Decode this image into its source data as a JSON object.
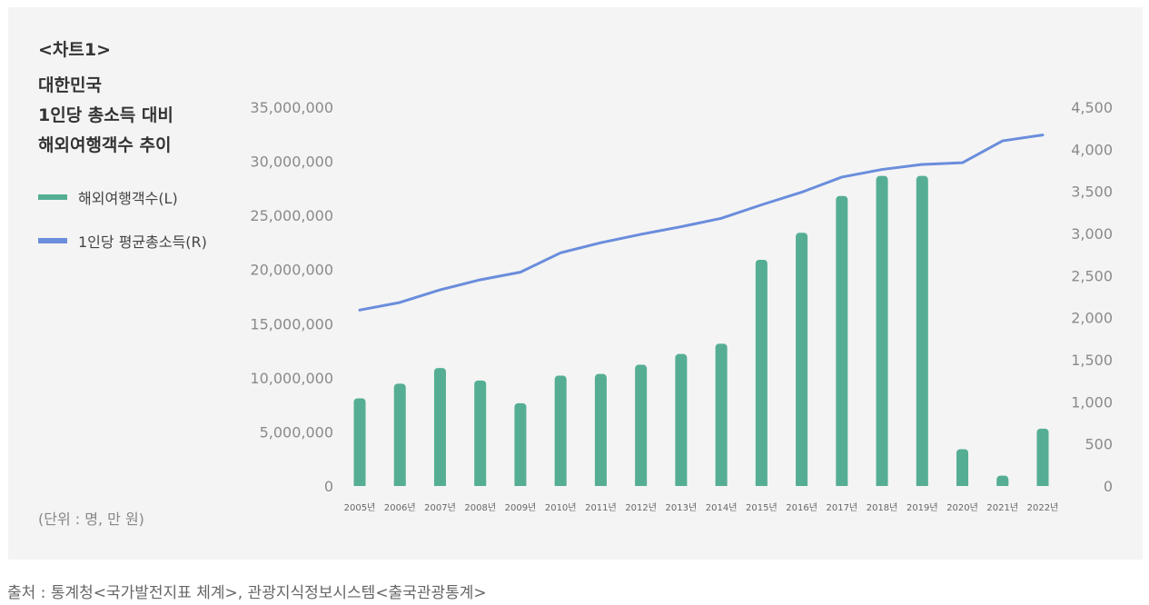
{
  "header": {
    "label": "<차트1>",
    "title": "대한민국\n1인당 총소득 대비\n해외여행객수 추이"
  },
  "legend": [
    {
      "label": "해외여행객수(L)",
      "color": "#55ae94"
    },
    {
      "label": "1인당 평균총소득(R)",
      "color": "#6a8ddc"
    }
  ],
  "unit_note": "(단위 : 명, 만 원)",
  "source": "출처 : 통계청<국가발전지표 체계>, 관광지식정보시스템<출국관광통계>",
  "chart_data": {
    "type": "bar+line",
    "categories": [
      "2005년",
      "2006년",
      "2007년",
      "2008년",
      "2009년",
      "2010년",
      "2011년",
      "2012년",
      "2013년",
      "2014년",
      "2015년",
      "2016년",
      "2017년",
      "2018년",
      "2019년",
      "2020년",
      "2021년",
      "2022년"
    ],
    "series": [
      {
        "name": "해외여행객수(L)",
        "type": "bar",
        "axis": "left",
        "color": "#55ae94",
        "values": [
          8100000,
          9450000,
          10900000,
          9750000,
          7650000,
          10200000,
          10350000,
          11200000,
          12200000,
          13150000,
          20900000,
          23400000,
          26800000,
          28650000,
          28650000,
          3400000,
          950000,
          5300000
        ]
      },
      {
        "name": "1인당 평균총소득(R)",
        "type": "line",
        "axis": "right",
        "color": "#6a8ddc",
        "values": [
          2090,
          2180,
          2330,
          2450,
          2540,
          2770,
          2890,
          2990,
          3080,
          3180,
          3340,
          3490,
          3670,
          3760,
          3820,
          3840,
          4100,
          4170
        ]
      }
    ],
    "y_left": {
      "min": 0,
      "max": 35000000,
      "ticks": [
        "35,000,000",
        "30,000,000",
        "25,000,000",
        "20,000,000",
        "15,000,000",
        "10,000,000",
        "5,000,000",
        "0"
      ]
    },
    "y_right": {
      "min": 0,
      "max": 4500,
      "ticks": [
        "4,500",
        "4,000",
        "3,500",
        "3,000",
        "2,500",
        "2,000",
        "1,500",
        "1,000",
        "500",
        "0"
      ]
    },
    "grid": false,
    "legend_position": "left"
  }
}
